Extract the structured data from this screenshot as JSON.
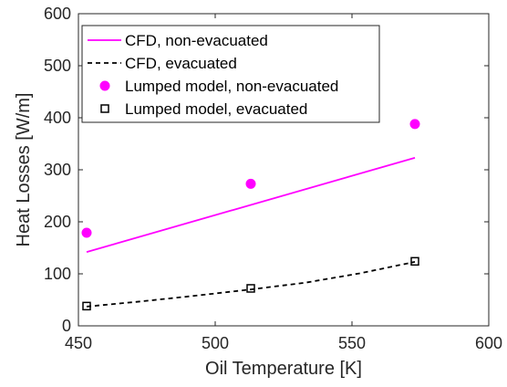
{
  "chart_data": {
    "type": "line",
    "title": "",
    "xlabel": "Oil Temperature [K]",
    "ylabel": "Heat Losses [W/m]",
    "xlim": [
      450,
      600
    ],
    "ylim": [
      0,
      600
    ],
    "x_ticks": [
      "450",
      "500",
      "550",
      "600"
    ],
    "y_ticks": [
      "0",
      "100",
      "200",
      "300",
      "400",
      "500",
      "600"
    ],
    "grid": false,
    "legend_position": "top-left",
    "series": [
      {
        "name": "CFD, non-evacuated",
        "style": "solid-line",
        "color": "#ff00ff",
        "x": [
          453,
          573
        ],
        "y": [
          142,
          323
        ]
      },
      {
        "name": "CFD, evacuated",
        "style": "dashed-line",
        "color": "#000000",
        "x": [
          453,
          473,
          493,
          513,
          533,
          553,
          573
        ],
        "y": [
          37,
          47,
          58,
          70,
          83,
          101,
          123
        ]
      },
      {
        "name": "Lumped model, non-evacuated",
        "style": "filled-circle",
        "color": "#ff00ff",
        "x": [
          453,
          513,
          573
        ],
        "y": [
          179,
          273,
          388
        ]
      },
      {
        "name": "Lumped model, evacuated",
        "style": "open-square",
        "color": "#000000",
        "x": [
          453,
          513,
          573
        ],
        "y": [
          38,
          72,
          124
        ]
      }
    ]
  }
}
